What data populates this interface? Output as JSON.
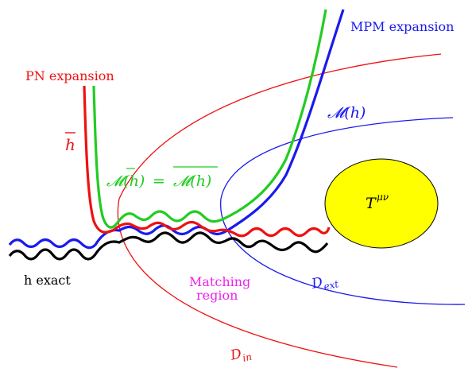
{
  "labels": {
    "pn_expansion": "PN expansion",
    "mpm_expansion": "MPM expansion",
    "h_bar": "h",
    "m_of_h": "𝓜(h)",
    "m_equality_left": "𝓜(h)",
    "m_equality_eq": "=",
    "m_equality_right": "𝓜(h)",
    "h_exact": "h exact",
    "matching_line1": "Matching",
    "matching_line2": "region",
    "d_ext_main": "D",
    "d_ext_sub": "ext",
    "d_in_main": "D",
    "d_in_sub": "in",
    "t_main": "T",
    "t_sup": "μν"
  },
  "colors": {
    "pn": "#ee1111",
    "mpm": "#1a1aee",
    "green": "#22cc22",
    "black": "#000000",
    "matching": "#ee22ee",
    "source_fill": "#ffff00"
  }
}
